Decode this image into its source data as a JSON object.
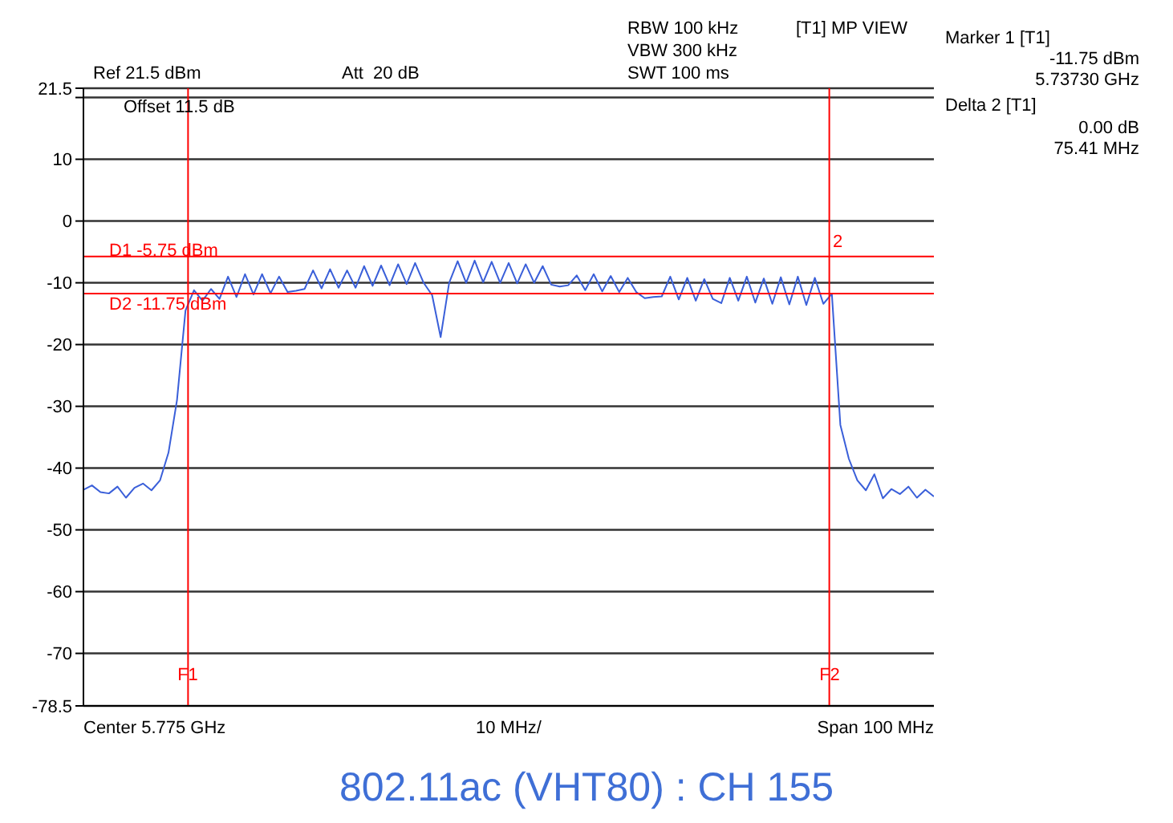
{
  "chart_data": {
    "type": "line",
    "title": "802.11ac (VHT80) : CH 155",
    "categories": [
      null,
      null,
      null,
      null,
      null,
      null,
      null,
      null,
      null,
      null,
      null,
      null,
      null,
      null,
      null,
      null,
      null,
      null,
      null,
      null,
      null,
      null,
      null,
      null,
      null,
      null,
      null,
      null,
      null,
      null,
      null,
      null,
      null,
      null,
      null,
      null,
      null,
      null,
      null,
      null,
      null,
      null,
      null,
      null,
      null,
      null,
      null,
      null,
      null,
      null,
      null,
      null,
      null,
      null,
      null,
      null,
      null,
      null,
      null,
      null,
      null,
      null,
      null,
      null,
      null,
      null,
      null,
      null,
      null,
      null,
      null,
      null,
      null,
      null,
      null,
      null,
      null,
      null,
      null,
      null,
      null,
      null,
      null,
      null,
      null,
      null,
      null,
      null,
      null,
      null,
      null,
      null,
      null,
      null,
      null,
      null,
      null,
      null,
      null,
      null,
      null
    ],
    "series": [
      {
        "color": "#3a5fd9",
        "values": [
          -43.5,
          -42.8,
          -43.9,
          -44.1,
          -43,
          -44.8,
          -43.2,
          -42.5,
          -43.6,
          -42,
          -37.5,
          -29,
          -14.5,
          -11.2,
          -12.9,
          -11,
          -12.6,
          -9,
          -12.3,
          -8.6,
          -11.9,
          -8.6,
          -11.7,
          -9,
          -11.5,
          -11.3,
          -11,
          -8,
          -10.9,
          -7.8,
          -10.8,
          -8,
          -10.8,
          -7.3,
          -10.5,
          -7.2,
          -10.4,
          -7,
          -10.2,
          -6.8,
          -10,
          -12,
          -18.8,
          -10,
          -6.5,
          -10,
          -6.4,
          -9.9,
          -6.6,
          -10,
          -6.8,
          -10.1,
          -7,
          -10,
          -7.3,
          -10.3,
          -10.6,
          -10.4,
          -8.8,
          -11.2,
          -8.6,
          -11.4,
          -8.9,
          -11.5,
          -9.2,
          -11.5,
          -12.5,
          -12.3,
          -12.2,
          -9,
          -12.7,
          -9.2,
          -12.9,
          -9.4,
          -12.6,
          -13.3,
          -9.2,
          -12.9,
          -9,
          -13.2,
          -9.3,
          -13.4,
          -9.1,
          -13.5,
          -9,
          -13.6,
          -9.2,
          -13.4,
          -11.8,
          -33,
          -38.5,
          -42,
          -43.6,
          -41,
          -44.9,
          -43.4,
          -44.2,
          -43,
          -44.8,
          -43.5,
          -44.6
        ]
      }
    ],
    "ylim": [
      -78.5,
      21.5
    ],
    "yticks": [
      21.5,
      {
        "value": 20,
        "label": null
      },
      10,
      0,
      -10,
      -20,
      -30,
      -40,
      -50,
      -60,
      -70,
      -78.5
    ],
    "grid": "y",
    "legend": false,
    "marker": "none",
    "line_style": "solid",
    "ref_lines": [
      {
        "axis": "y",
        "value": -5.75,
        "label": "D1 -5.75 dBm",
        "color": "#ff0000"
      },
      {
        "axis": "y",
        "value": -11.75,
        "label": "D2 -11.75 dBm",
        "color": "#ff0000"
      }
    ],
    "annotations": [
      "Ref 21.5 dBm",
      "Att  20 dB",
      "Offset 11.5 dB",
      "RBW 100 kHz",
      "VBW 300 kHz",
      "SWT 100 ms",
      "[T1] MP VIEW",
      "Marker 1 [T1]",
      "-11.75 dBm",
      "5.73730 GHz",
      "Delta 2 [T1]",
      "0.00 dB",
      "75.41 MHz",
      "Center 5.775 GHz",
      "10 MHz/",
      "Span 100 MHz",
      "2",
      "F1",
      "F2"
    ]
  }
}
